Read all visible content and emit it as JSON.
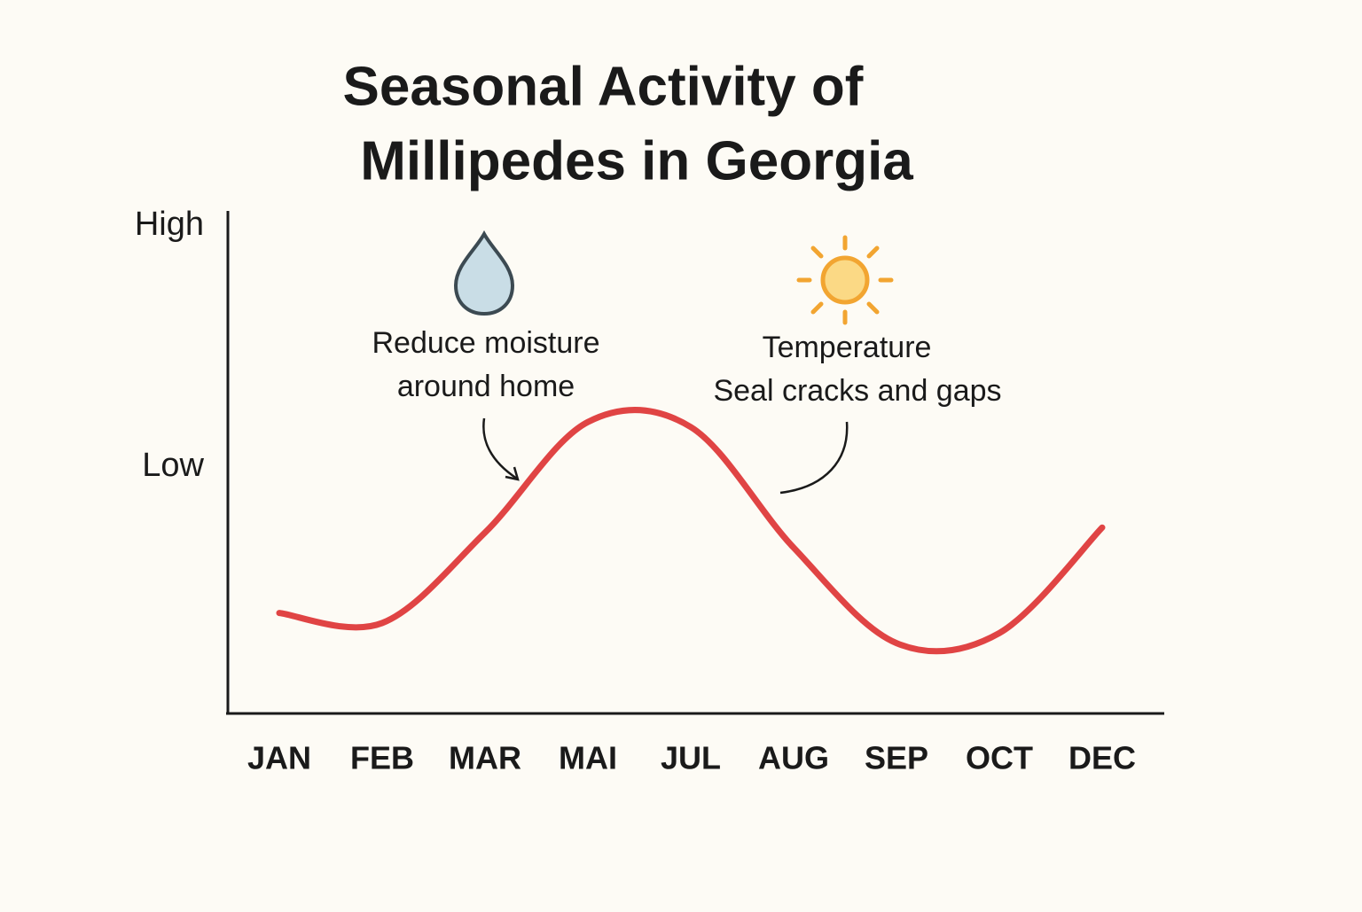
{
  "chart_data": {
    "type": "line",
    "title": [
      "Seasonal Activity of",
      "Millipedes in Georgia"
    ],
    "categories": [
      "JAN",
      "FEB",
      "MAR",
      "MAI",
      "JUL",
      "AUG",
      "SEP",
      "OCT",
      "DEC"
    ],
    "values": [
      20,
      18,
      36,
      58,
      57,
      33,
      14,
      16,
      37
    ],
    "color": "#e04444",
    "ylim": [
      0,
      100
    ],
    "yticks": [
      {
        "value": 97,
        "label": "High"
      },
      {
        "value": 49,
        "label": "Low"
      }
    ],
    "grid": false,
    "annotations": [
      {
        "lines": [
          "Reduce moisture",
          "around home"
        ]
      },
      {
        "lines": [
          "Temperature",
          "Seal cracks and gaps"
        ]
      }
    ]
  }
}
